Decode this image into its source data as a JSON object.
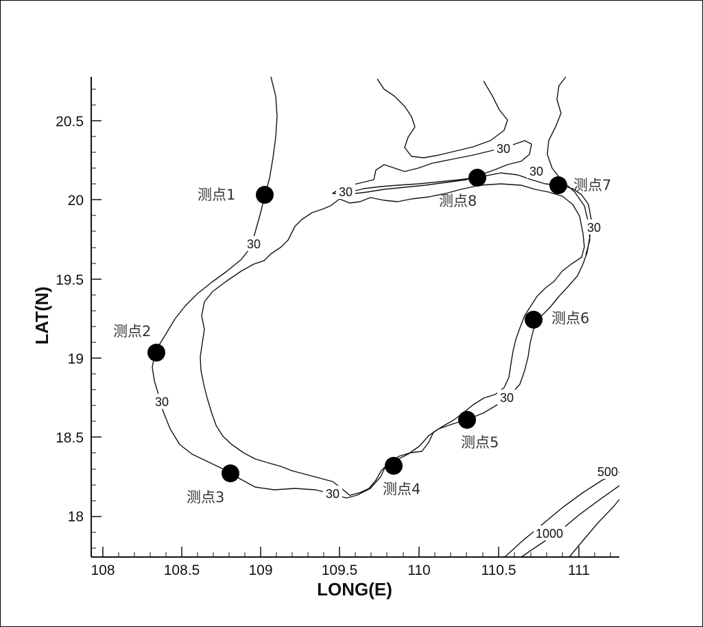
{
  "map": {
    "x_axis_title": "LONG(E)",
    "y_axis_title": "LAT(N)",
    "x_ticks": [
      "108",
      "108.5",
      "109",
      "109.5",
      "110",
      "110.5",
      "111"
    ],
    "y_ticks": [
      "18",
      "18.5",
      "19",
      "19.5",
      "20",
      "20.5"
    ],
    "contour_labels": [
      "30",
      "30",
      "30",
      "30",
      "30",
      "30",
      "30",
      "500",
      "1000"
    ],
    "stations": [
      {
        "label": "测点1",
        "lon": 109.02,
        "lat": 20.03
      },
      {
        "label": "测点2",
        "lon": 108.33,
        "lat": 19.04
      },
      {
        "label": "测点3",
        "lon": 108.8,
        "lat": 18.27
      },
      {
        "label": "测点4",
        "lon": 109.84,
        "lat": 18.32
      },
      {
        "label": "测点5",
        "lon": 110.3,
        "lat": 18.61
      },
      {
        "label": "测点6",
        "lon": 110.72,
        "lat": 19.24
      },
      {
        "label": "测点7",
        "lon": 110.88,
        "lat": 20.1
      },
      {
        "label": "测点8",
        "lon": 110.37,
        "lat": 20.14
      }
    ]
  }
}
